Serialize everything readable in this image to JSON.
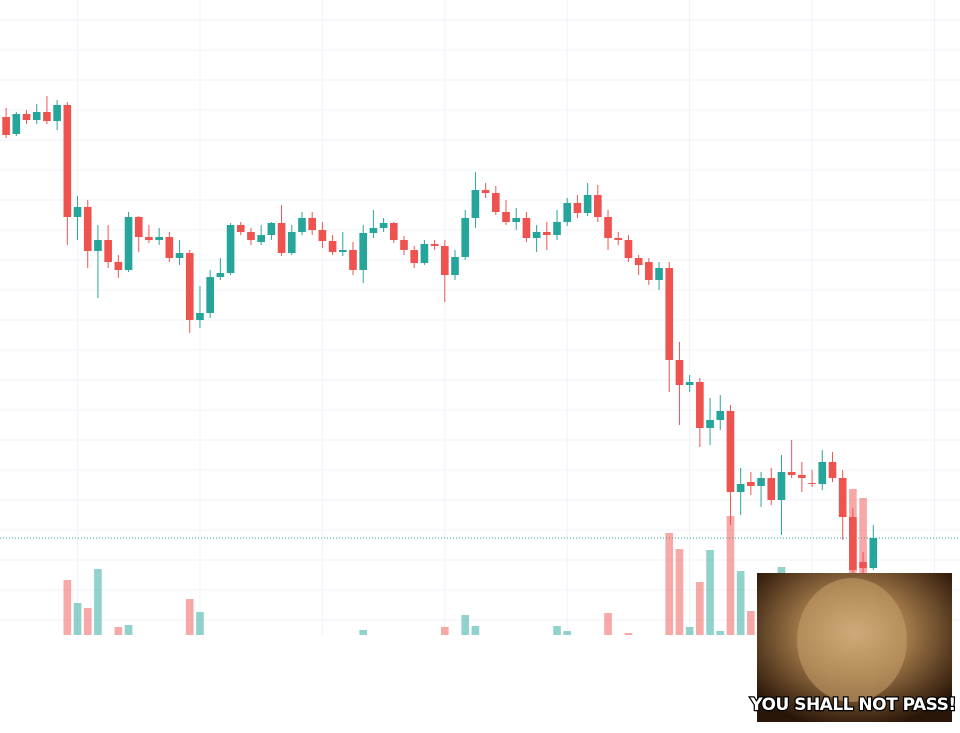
{
  "chart_data": {
    "type": "candlestick",
    "up_color": "#26a69a",
    "down_color": "#ef5350",
    "grid": true,
    "last_price_line": true,
    "xlim": [
      -0.6,
      93.5
    ],
    "xticks": [
      7,
      19,
      31,
      43,
      55,
      67,
      79,
      91
    ],
    "ylim": [
      0,
      635
    ],
    "yticks": [
      15,
      45,
      75,
      105,
      135,
      165,
      195,
      225,
      255,
      285,
      315,
      345,
      375,
      405,
      435,
      465,
      495,
      525,
      555,
      585,
      615
    ],
    "volume_lim": [
      0,
      635
    ],
    "open": [
      518,
      501,
      521,
      515,
      523,
      514,
      530,
      418,
      428,
      384,
      395,
      373,
      365,
      418,
      398,
      395,
      398,
      377,
      382,
      315,
      322,
      358,
      362,
      410,
      403,
      393,
      400,
      412,
      382,
      403,
      417,
      405,
      394,
      383,
      385,
      365,
      402,
      407,
      412,
      395,
      385,
      372,
      391,
      389,
      360,
      378,
      417,
      445,
      442,
      423,
      413,
      417,
      397,
      403,
      400,
      413,
      432,
      422,
      440,
      418,
      397,
      395,
      377,
      373,
      355,
      367,
      275,
      250,
      253,
      207,
      215,
      224,
      143,
      153,
      149,
      157,
      135,
      163,
      160,
      152,
      151,
      173,
      157,
      118,
      73,
      67
    ],
    "high": [
      527,
      523,
      525,
      531,
      539,
      535,
      533,
      439,
      435,
      410,
      410,
      380,
      423,
      419,
      410,
      407,
      403,
      395,
      385,
      349,
      365,
      377,
      412,
      413,
      407,
      410,
      413,
      430,
      410,
      423,
      423,
      413,
      400,
      403,
      393,
      410,
      425,
      417,
      413,
      399,
      389,
      395,
      395,
      395,
      385,
      425,
      463,
      452,
      449,
      435,
      427,
      423,
      410,
      413,
      425,
      437,
      440,
      452,
      450,
      425,
      403,
      400,
      380,
      377,
      373,
      373,
      293,
      260,
      257,
      237,
      240,
      230,
      167,
      163,
      163,
      167,
      180,
      195,
      173,
      165,
      185,
      183,
      165,
      127,
      83,
      110
    ],
    "low": [
      497,
      499,
      511,
      511,
      511,
      505,
      390,
      395,
      367,
      337,
      367,
      357,
      363,
      383,
      392,
      390,
      373,
      370,
      302,
      307,
      317,
      355,
      360,
      400,
      390,
      390,
      395,
      379,
      380,
      400,
      400,
      387,
      380,
      379,
      360,
      352,
      397,
      403,
      392,
      380,
      367,
      370,
      385,
      333,
      355,
      375,
      407,
      437,
      420,
      410,
      405,
      393,
      383,
      385,
      395,
      409,
      417,
      419,
      413,
      385,
      390,
      373,
      360,
      350,
      345,
      243,
      210,
      243,
      188,
      190,
      205,
      110,
      120,
      140,
      128,
      130,
      100,
      157,
      143,
      148,
      145,
      153,
      95,
      60,
      60,
      65
    ],
    "close": [
      500,
      521,
      515,
      523,
      514,
      530,
      418,
      428,
      384,
      395,
      373,
      365,
      418,
      398,
      395,
      398,
      377,
      382,
      315,
      322,
      358,
      362,
      410,
      403,
      395,
      400,
      412,
      382,
      403,
      417,
      405,
      394,
      383,
      385,
      365,
      402,
      407,
      412,
      395,
      385,
      372,
      391,
      389,
      360,
      378,
      417,
      445,
      442,
      423,
      413,
      417,
      397,
      403,
      400,
      413,
      432,
      422,
      440,
      418,
      397,
      395,
      377,
      370,
      355,
      367,
      275,
      250,
      253,
      207,
      215,
      224,
      143,
      151,
      149,
      157,
      135,
      163,
      160,
      157,
      151,
      173,
      157,
      118,
      65,
      67,
      97
    ],
    "volume": [
      0,
      0,
      0,
      0,
      0,
      0,
      55,
      32,
      27,
      66,
      0,
      8,
      10,
      0,
      0,
      0,
      0,
      0,
      36,
      23,
      0,
      0,
      0,
      0,
      0,
      0,
      0,
      0,
      0,
      0,
      0,
      0,
      0,
      0,
      0,
      5,
      0,
      0,
      0,
      0,
      0,
      0,
      0,
      8,
      0,
      20,
      9,
      0,
      0,
      0,
      0,
      0,
      0,
      0,
      9,
      4,
      0,
      0,
      0,
      22,
      0,
      2,
      0,
      0,
      0,
      102,
      86,
      8,
      53,
      85,
      4,
      119,
      64,
      24,
      0,
      0,
      68,
      0,
      0,
      0,
      0,
      0,
      0,
      146,
      137,
      0
    ],
    "annotations": [
      "YOU SHALL NOT PASS!"
    ]
  }
}
